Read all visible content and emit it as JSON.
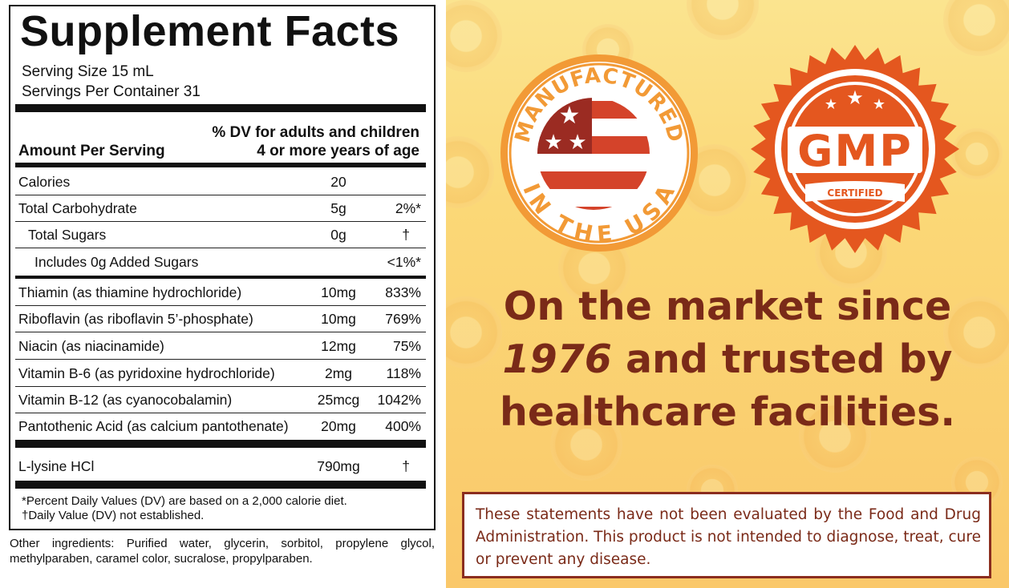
{
  "facts": {
    "title": "Supplement Facts",
    "serving_size": "Serving Size 15 mL",
    "servings_per_container": "Servings Per Container 31",
    "dv_header_line1": "% DV for adults and children",
    "dv_header_line2": "4 or more years of age",
    "amount_header": "Amount Per Serving",
    "rows": [
      {
        "name": "Calories",
        "amount": "20",
        "dv": ""
      },
      {
        "name": "Total Carbohydrate",
        "amount": "5g",
        "dv": "2%*"
      },
      {
        "name": "Total Sugars",
        "amount": "0g",
        "dv": "†"
      },
      {
        "name": "Includes 0g Added Sugars",
        "amount": "",
        "dv": "<1%*"
      },
      {
        "name": "Thiamin (as thiamine hydrochloride)",
        "amount": "10mg",
        "dv": "833%"
      },
      {
        "name": "Riboflavin (as riboflavin 5’-phosphate)",
        "amount": "10mg",
        "dv": "769%"
      },
      {
        "name": "Niacin (as niacinamide)",
        "amount": "12mg",
        "dv": "75%"
      },
      {
        "name": "Vitamin B-6 (as pyridoxine hydrochloride)",
        "amount": "2mg",
        "dv": "118%"
      },
      {
        "name": "Vitamin B-12 (as cyanocobalamin)",
        "amount": "25mcg",
        "dv": "1042%"
      },
      {
        "name": "Pantothenic Acid (as calcium pantothenate)",
        "amount": "20mg",
        "dv": "400%"
      },
      {
        "name": "L-lysine HCl",
        "amount": "790mg",
        "dv": "†"
      }
    ],
    "footnote1": "*Percent Daily Values (DV) are based on a 2,000 calorie diet.",
    "footnote2": "†Daily Value (DV) not established.",
    "other_ingredients": "Other ingredients: Purified water, glycerin, sorbitol, propylene glycol, methylparaben, caramel color, sucralose, propylparaben."
  },
  "badges": {
    "usa_top_text": "MANUFACTURED",
    "usa_bottom_text": "IN THE USA",
    "gmp_text": "GMP",
    "gmp_sub": "CERTIFIED"
  },
  "headline": {
    "line1": "On the market since",
    "year": "1976",
    "line2_rest": " and trusted by",
    "line3": "healthcare facilities."
  },
  "disclaimer": "These statements have not been evaluated by the Food and Drug Administration. This product is not intended to diagnose, treat, cure or prevent any disease.",
  "colors": {
    "brown": "#7a2a18",
    "orange": "#e4571f",
    "badge_orange": "#f29a36",
    "flag_red": "#d4432a",
    "flag_blue": "#9b2b22"
  }
}
